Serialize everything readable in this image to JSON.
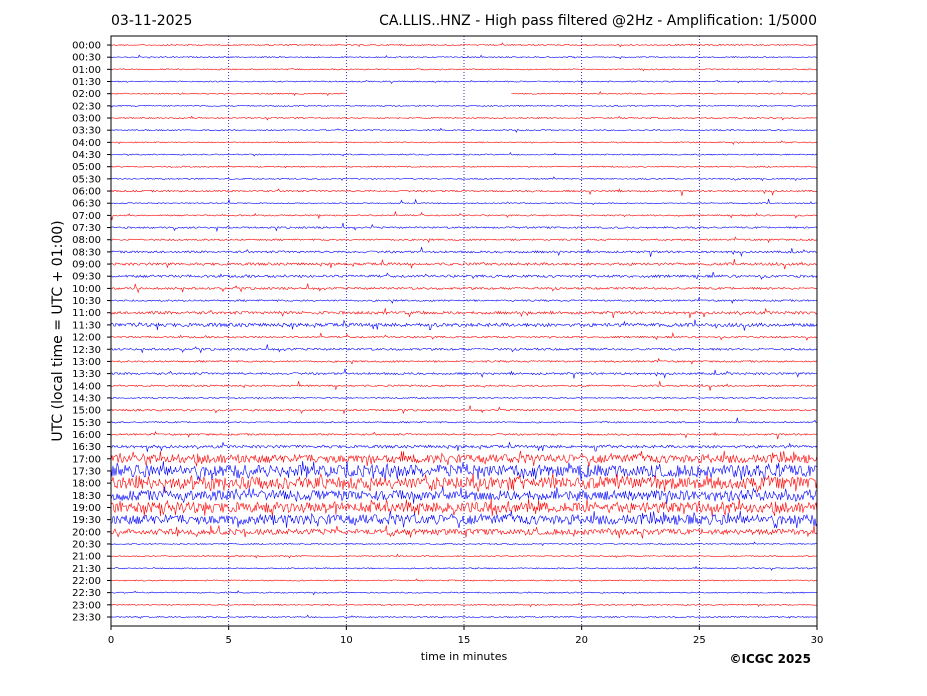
{
  "header": {
    "date": "03-11-2025",
    "title": "CA.LLIS..HNZ - High pass filtered @2Hz - Amplification: 1/5000"
  },
  "footer": {
    "copyright": "©ICGC 2025"
  },
  "colors": {
    "trace_a": "#ff0000",
    "trace_b": "#0000ff",
    "axis": "#000000",
    "grid": "#0000aa"
  },
  "chart_data": {
    "type": "line",
    "title": "CA.LLIS..HNZ - High pass filtered @2Hz - Amplification: 1/5000",
    "xlabel": "time in minutes",
    "ylabel": "UTC (local time = UTC + 01:00)",
    "xlim": [
      0,
      30
    ],
    "x_ticks": [
      "0",
      "5",
      "10",
      "15",
      "20",
      "25",
      "30"
    ],
    "vertical_gridlines_at": [
      5,
      10,
      15,
      20,
      25
    ],
    "grid": "vertical dotted",
    "rows": [
      "00:00",
      "00:30",
      "01:00",
      "01:30",
      "02:00",
      "02:30",
      "03:00",
      "03:30",
      "04:00",
      "04:30",
      "05:00",
      "05:30",
      "06:00",
      "06:30",
      "07:00",
      "07:30",
      "08:00",
      "08:30",
      "09:00",
      "09:30",
      "10:00",
      "10:30",
      "11:00",
      "11:30",
      "12:00",
      "12:30",
      "13:00",
      "13:30",
      "14:00",
      "14:30",
      "15:00",
      "15:30",
      "16:00",
      "16:30",
      "17:00",
      "17:30",
      "18:00",
      "18:30",
      "19:00",
      "19:30",
      "20:00",
      "20:30",
      "21:00",
      "21:30",
      "22:00",
      "22:30",
      "23:00",
      "23:30"
    ],
    "row_colors": "alternating red / blue starting with red at 00:00",
    "activity_level": [
      0.02,
      0.02,
      0.02,
      0.02,
      0.02,
      0.02,
      0.02,
      0.02,
      0.05,
      0.05,
      0.05,
      0.05,
      0.12,
      0.08,
      0.1,
      0.12,
      0.12,
      0.15,
      0.18,
      0.18,
      0.15,
      0.12,
      0.2,
      0.25,
      0.12,
      0.15,
      0.12,
      0.15,
      0.12,
      0.05,
      0.12,
      0.1,
      0.12,
      0.2,
      0.6,
      0.85,
      0.85,
      0.7,
      0.75,
      0.7,
      0.4,
      0.03,
      0.02,
      0.02,
      0.02,
      0.02,
      0.02,
      0.02
    ],
    "data_gaps": [
      {
        "row": "02:00",
        "from_minute": 10,
        "to_minute": 17
      }
    ]
  }
}
